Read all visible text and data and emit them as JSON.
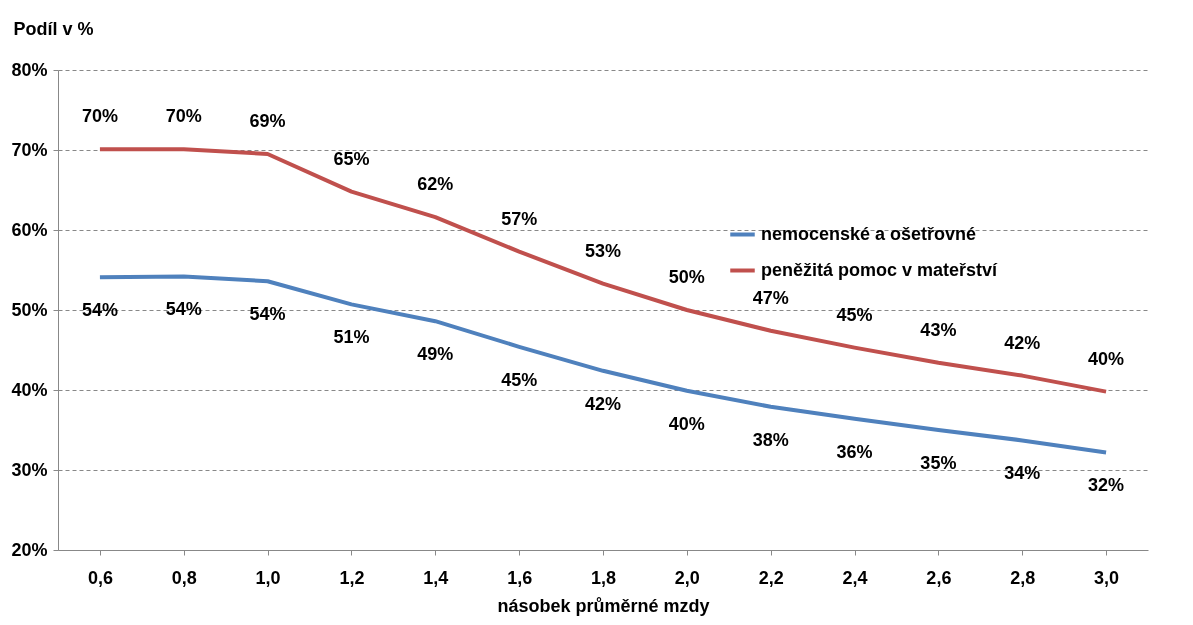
{
  "chart_data": {
    "type": "line",
    "ylabel": "Podíl v %",
    "xlabel": "násobek průměrné mzdy",
    "categories": [
      "0,6",
      "0,8",
      "1,0",
      "1,2",
      "1,4",
      "1,6",
      "1,8",
      "2,0",
      "2,2",
      "2,4",
      "2,6",
      "2,8",
      "3,0"
    ],
    "series": [
      {
        "name": "nemocenské a ošetřovné",
        "color": "#4f81bd",
        "values": [
          54.1,
          54.2,
          53.6,
          50.7,
          48.6,
          45.4,
          42.4,
          39.9,
          37.9,
          36.4,
          35.0,
          33.7,
          32.2
        ],
        "value_labels": [
          "54%",
          "54%",
          "54%",
          "51%",
          "49%",
          "45%",
          "42%",
          "40%",
          "38%",
          "36%",
          "35%",
          "34%",
          "32%"
        ]
      },
      {
        "name": "peněžitá pomoc v mateřství",
        "color": "#c0504d",
        "values": [
          70.1,
          70.1,
          69.5,
          64.8,
          61.6,
          57.3,
          53.3,
          50.0,
          47.4,
          45.3,
          43.4,
          41.8,
          39.8
        ],
        "value_labels": [
          "70%",
          "70%",
          "69%",
          "65%",
          "62%",
          "57%",
          "53%",
          "50%",
          "47%",
          "45%",
          "43%",
          "42%",
          "40%"
        ]
      }
    ],
    "ylim": [
      20,
      80
    ],
    "yticks": [
      {
        "value": 20,
        "label": "20%"
      },
      {
        "value": 30,
        "label": "30%"
      },
      {
        "value": 40,
        "label": "40%"
      },
      {
        "value": 50,
        "label": "50%"
      },
      {
        "value": 60,
        "label": "60%"
      },
      {
        "value": 70,
        "label": "70%"
      },
      {
        "value": 80,
        "label": "80%"
      }
    ],
    "grid": "y",
    "legend": "top right",
    "marker": "none",
    "line_style": "solid"
  }
}
